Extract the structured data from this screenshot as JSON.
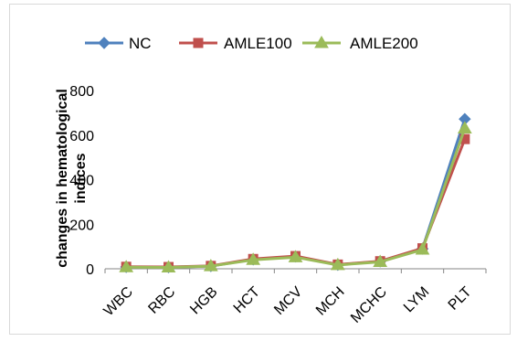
{
  "chart_data": {
    "type": "line",
    "title": "",
    "xlabel": "",
    "ylabel": [
      "changes in hematological",
      "indices"
    ],
    "categories": [
      "WBC",
      "RBC",
      "HGB",
      "HCT",
      "MCV",
      "MCH",
      "MCHC",
      "LYM",
      "PLT"
    ],
    "ylim": [
      0,
      800
    ],
    "yticks": [
      0,
      200,
      400,
      600,
      800
    ],
    "grid": false,
    "legend_position": "top",
    "series": [
      {
        "name": "NC",
        "color": "#4F81BD",
        "marker": "diamond",
        "values": [
          8,
          7,
          12,
          42,
          55,
          18,
          33,
          90,
          672
        ]
      },
      {
        "name": "AMLE100",
        "color": "#C0504D",
        "marker": "square",
        "values": [
          9,
          8,
          13,
          44,
          57,
          19,
          34,
          92,
          582
        ]
      },
      {
        "name": "AMLE200",
        "color": "#9BBB59",
        "marker": "triangle",
        "values": [
          7,
          6,
          12,
          40,
          52,
          17,
          31,
          86,
          630
        ]
      }
    ]
  }
}
